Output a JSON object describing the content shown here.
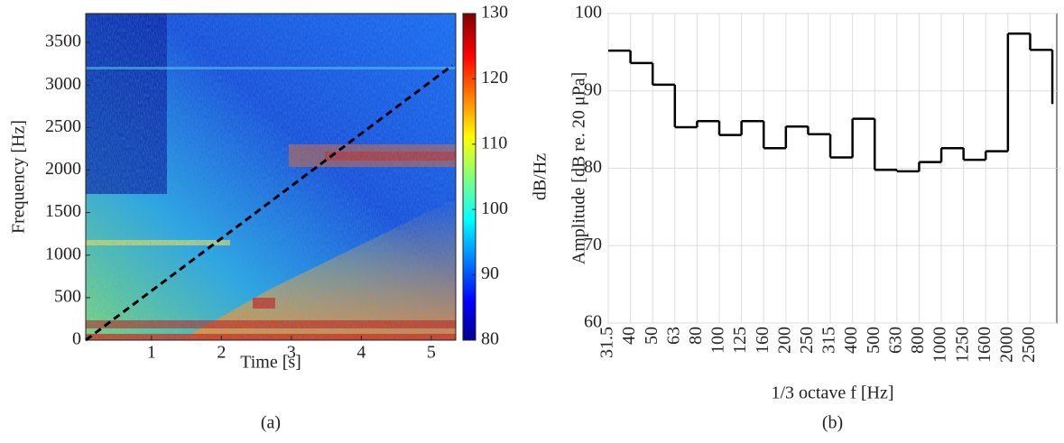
{
  "chart_data": [
    {
      "type": "spectrogram",
      "caption": "(a)",
      "xlabel": "Time [s]",
      "ylabel": "Frequency [Hz]",
      "xlim": [
        0.06,
        5.35
      ],
      "xticks": [
        1,
        2,
        3,
        4,
        5
      ],
      "ylim": [
        0,
        3840
      ],
      "yticks": [
        0,
        500,
        1000,
        1500,
        2000,
        2500,
        3000,
        3500
      ],
      "colorbar": {
        "label": "dB/Hz",
        "clim": [
          80,
          130
        ],
        "ticks": [
          80,
          90,
          100,
          110,
          120,
          130
        ]
      },
      "line": {
        "x": [
          0.06,
          5.3
        ],
        "y": [
          0,
          3230
        ],
        "color": "#000000",
        "dashed": true
      }
    },
    {
      "type": "step",
      "caption": "(b)",
      "xlabel": "1/3 octave f [Hz]",
      "ylabel": "Amplitude [dB re. 20 μPa]",
      "categories": [
        "31.5",
        "40",
        "50",
        "63",
        "80",
        "100",
        "125",
        "160",
        "200",
        "250",
        "315",
        "400",
        "500",
        "630",
        "800",
        "1000",
        "1250",
        "1600",
        "2000",
        "2500",
        null
      ],
      "values": [
        95.2,
        93.6,
        90.8,
        85.3,
        86.1,
        84.3,
        86.1,
        82.6,
        85.4,
        84.4,
        81.4,
        86.4,
        79.8,
        79.6,
        80.8,
        82.6,
        81.1,
        82.2,
        97.4,
        95.3,
        88.3
      ],
      "color": "#000000",
      "ylim": [
        60,
        100
      ],
      "yticks": [
        60,
        70,
        80,
        90,
        100
      ],
      "grid": true
    }
  ]
}
